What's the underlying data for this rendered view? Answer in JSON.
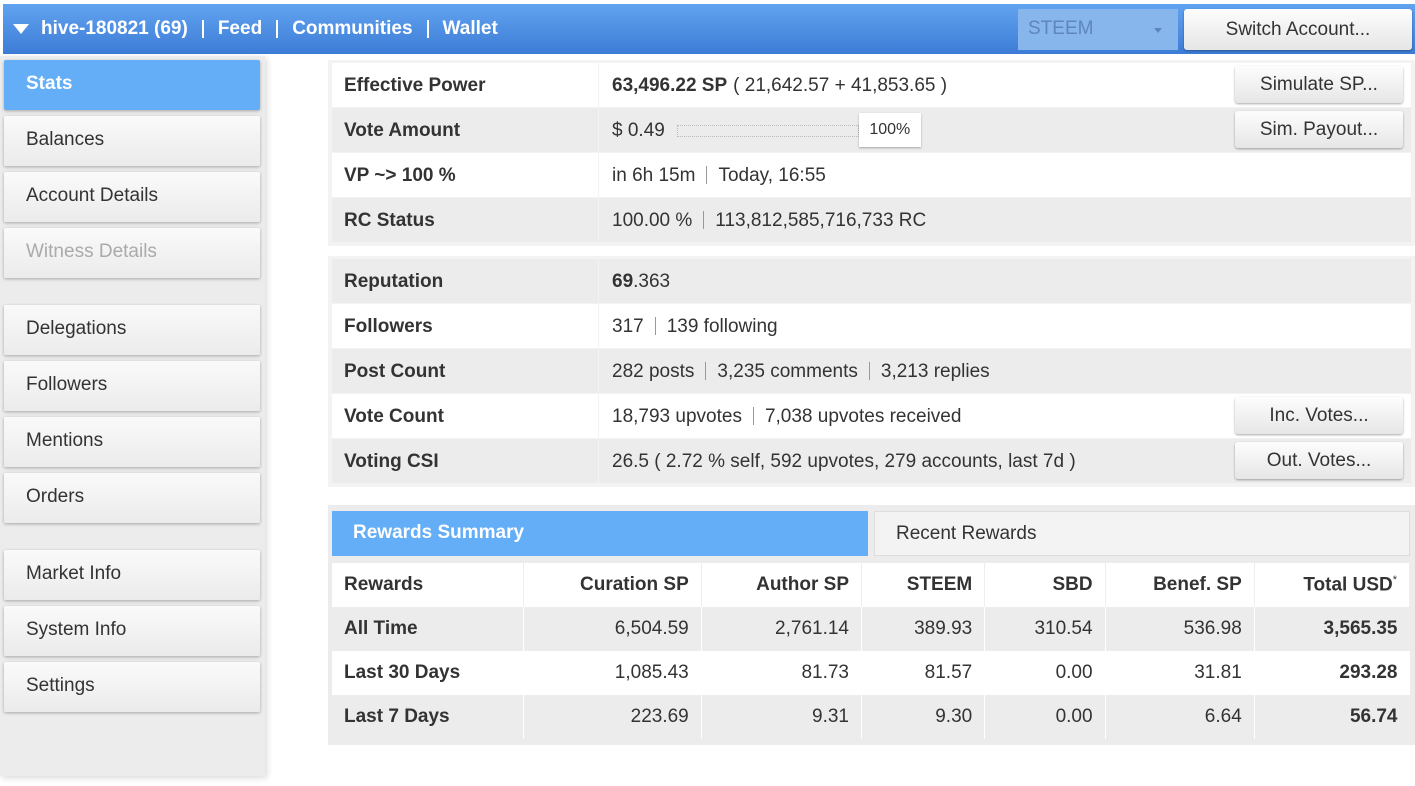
{
  "header": {
    "account": "hive-180821 (69)",
    "links": [
      "Feed",
      "Communities",
      "Wallet"
    ],
    "currency": "STEEM",
    "switch_account": "Switch Account..."
  },
  "sidebar": {
    "groups": [
      [
        "Stats",
        "Balances",
        "Account Details",
        "Witness Details"
      ],
      [
        "Delegations",
        "Followers",
        "Mentions",
        "Orders"
      ],
      [
        "Market Info",
        "System Info",
        "Settings"
      ]
    ]
  },
  "stats": {
    "groups": [
      [
        {
          "label": "Effective Power",
          "strong": "63,496.22 SP",
          "text": "( 21,642.57 + 41,853.65 )",
          "button": "Simulate SP..."
        },
        {
          "label": "Vote Amount",
          "amount": "$ 0.49",
          "percent": "100%",
          "button": "Sim. Payout..."
        },
        {
          "label": "VP ~> 100 %",
          "parts": [
            "in 6h 15m",
            "Today, 16:55"
          ]
        },
        {
          "label": "RC Status",
          "parts": [
            "100.00 %",
            "113,812,585,716,733 RC"
          ]
        }
      ],
      [
        {
          "label": "Reputation",
          "strong": "69",
          "suffix": ".363"
        },
        {
          "label": "Followers",
          "parts": [
            "317",
            "139 following"
          ]
        },
        {
          "label": "Post Count",
          "parts": [
            "282 posts",
            "3,235 comments",
            "3,213 replies"
          ]
        },
        {
          "label": "Vote Count",
          "parts": [
            "18,793 upvotes",
            "7,038 upvotes received"
          ],
          "button": "Inc. Votes..."
        },
        {
          "label": "Voting CSI",
          "parts": [
            "26.5 ( 2.72 % self, 592 upvotes, 279 accounts, last 7d )"
          ],
          "button": "Out. Votes..."
        }
      ]
    ]
  },
  "rewards": {
    "tabs": [
      "Rewards Summary",
      "Recent Rewards"
    ],
    "columns": [
      "Rewards",
      "Curation SP",
      "Author SP",
      "STEEM",
      "SBD",
      "Benef. SP",
      "Total USD"
    ],
    "footnote_mark": "*",
    "rows": [
      {
        "period": "All Time",
        "values": [
          "6,504.59",
          "2,761.14",
          "389.93",
          "310.54",
          "536.98",
          "3,565.35"
        ]
      },
      {
        "period": "Last 30 Days",
        "values": [
          "1,085.43",
          "81.73",
          "81.57",
          "0.00",
          "31.81",
          "293.28"
        ]
      },
      {
        "period": "Last 7 Days",
        "values": [
          "223.69",
          "9.31",
          "9.30",
          "0.00",
          "6.64",
          "56.74"
        ]
      }
    ]
  }
}
